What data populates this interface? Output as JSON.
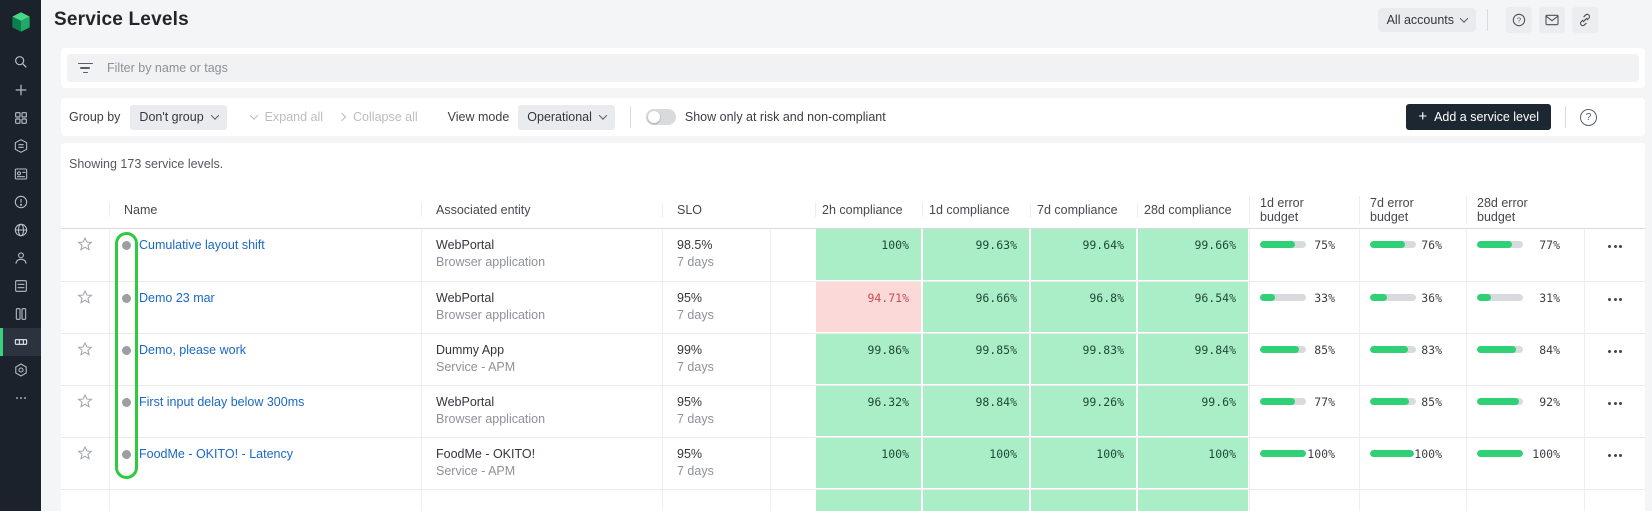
{
  "app": {
    "title": "Service Levels",
    "accounts_selector": "All accounts"
  },
  "sidebar": {
    "icons": [
      "search",
      "add",
      "apps",
      "deployment",
      "applications",
      "problems",
      "network",
      "users",
      "services",
      "hosts",
      "service-levels",
      "settings",
      "more"
    ],
    "active": "service-levels"
  },
  "filter": {
    "placeholder": "Filter by name or tags"
  },
  "toolbar": {
    "group_by_label": "Group by",
    "group_by_value": "Don't group",
    "expand_all": "Expand all",
    "collapse_all": "Collapse all",
    "view_mode_label": "View mode",
    "view_mode_value": "Operational",
    "toggle_label": "Show only at risk and non-compliant",
    "toggle_state": "off",
    "add_button": "Add a service level"
  },
  "table": {
    "summary": "Showing 173 service levels.",
    "columns": {
      "name": "Name",
      "entity": "Associated entity",
      "slo": "SLO",
      "compliance": [
        "2h compliance",
        "1d compliance",
        "7d compliance",
        "28d compliance"
      ],
      "error_budget": [
        "1d error budget",
        "7d error budget",
        "28d error budget"
      ]
    },
    "rows": [
      {
        "name": "Cumulative layout shift",
        "entity": "WebPortal",
        "entity_type": "Browser application",
        "slo_target": "98.5%",
        "slo_window": "7 days",
        "compliance": [
          {
            "value": "100%",
            "status": "ok"
          },
          {
            "value": "99.63%",
            "status": "ok"
          },
          {
            "value": "99.64%",
            "status": "ok"
          },
          {
            "value": "99.66%",
            "status": "ok"
          }
        ],
        "budgets": [
          {
            "label": "75%",
            "pct": 75
          },
          {
            "label": "76%",
            "pct": 76
          },
          {
            "label": "77%",
            "pct": 77
          }
        ]
      },
      {
        "name": "Demo 23 mar",
        "entity": "WebPortal",
        "entity_type": "Browser application",
        "slo_target": "95%",
        "slo_window": "7 days",
        "compliance": [
          {
            "value": "94.71%",
            "status": "fail"
          },
          {
            "value": "96.66%",
            "status": "ok"
          },
          {
            "value": "96.8%",
            "status": "ok"
          },
          {
            "value": "96.54%",
            "status": "ok"
          }
        ],
        "budgets": [
          {
            "label": "33%",
            "pct": 33
          },
          {
            "label": "36%",
            "pct": 36
          },
          {
            "label": "31%",
            "pct": 31
          }
        ]
      },
      {
        "name": "Demo, please work",
        "entity": "Dummy App",
        "entity_type": "Service - APM",
        "slo_target": "99%",
        "slo_window": "7 days",
        "compliance": [
          {
            "value": "99.86%",
            "status": "ok"
          },
          {
            "value": "99.85%",
            "status": "ok"
          },
          {
            "value": "99.83%",
            "status": "ok"
          },
          {
            "value": "99.84%",
            "status": "ok"
          }
        ],
        "budgets": [
          {
            "label": "85%",
            "pct": 85
          },
          {
            "label": "83%",
            "pct": 83
          },
          {
            "label": "84%",
            "pct": 84
          }
        ]
      },
      {
        "name": "First input delay below 300ms",
        "entity": "WebPortal",
        "entity_type": "Browser application",
        "slo_target": "95%",
        "slo_window": "7 days",
        "compliance": [
          {
            "value": "96.32%",
            "status": "ok"
          },
          {
            "value": "98.84%",
            "status": "ok"
          },
          {
            "value": "99.26%",
            "status": "ok"
          },
          {
            "value": "99.6%",
            "status": "ok"
          }
        ],
        "budgets": [
          {
            "label": "77%",
            "pct": 77
          },
          {
            "label": "85%",
            "pct": 85
          },
          {
            "label": "92%",
            "pct": 92
          }
        ]
      },
      {
        "name": "FoodMe - OKITO! - Latency",
        "entity": "FoodMe - OKITO!",
        "entity_type": "Service - APM",
        "slo_target": "95%",
        "slo_window": "7 days",
        "compliance": [
          {
            "value": "100%",
            "status": "ok"
          },
          {
            "value": "100%",
            "status": "ok"
          },
          {
            "value": "100%",
            "status": "ok"
          },
          {
            "value": "100%",
            "status": "ok"
          }
        ],
        "budgets": [
          {
            "label": "100%",
            "pct": 100
          },
          {
            "label": "100%",
            "pct": 100
          },
          {
            "label": "100%",
            "pct": 100
          }
        ]
      }
    ],
    "partial_row_visible": true
  },
  "annotation": {
    "shape": "rounded-oval",
    "target": "status-dot-column"
  },
  "colors": {
    "page-bg": "#f4f5f6",
    "sidebar-bg": "#1b222c",
    "accent-green": "#37d27d",
    "annotation-green": "#2fca3e",
    "compliant-bg": "#aaeec8",
    "compliant-text": "#1e4936",
    "noncompliant-bg": "#fbd9d9",
    "noncompliant-text": "#ca4b50",
    "bar-fill": "#30d077",
    "bar-track": "#d8dadd",
    "link-blue": "#1a68c4",
    "button-dark": "#1d2732"
  }
}
